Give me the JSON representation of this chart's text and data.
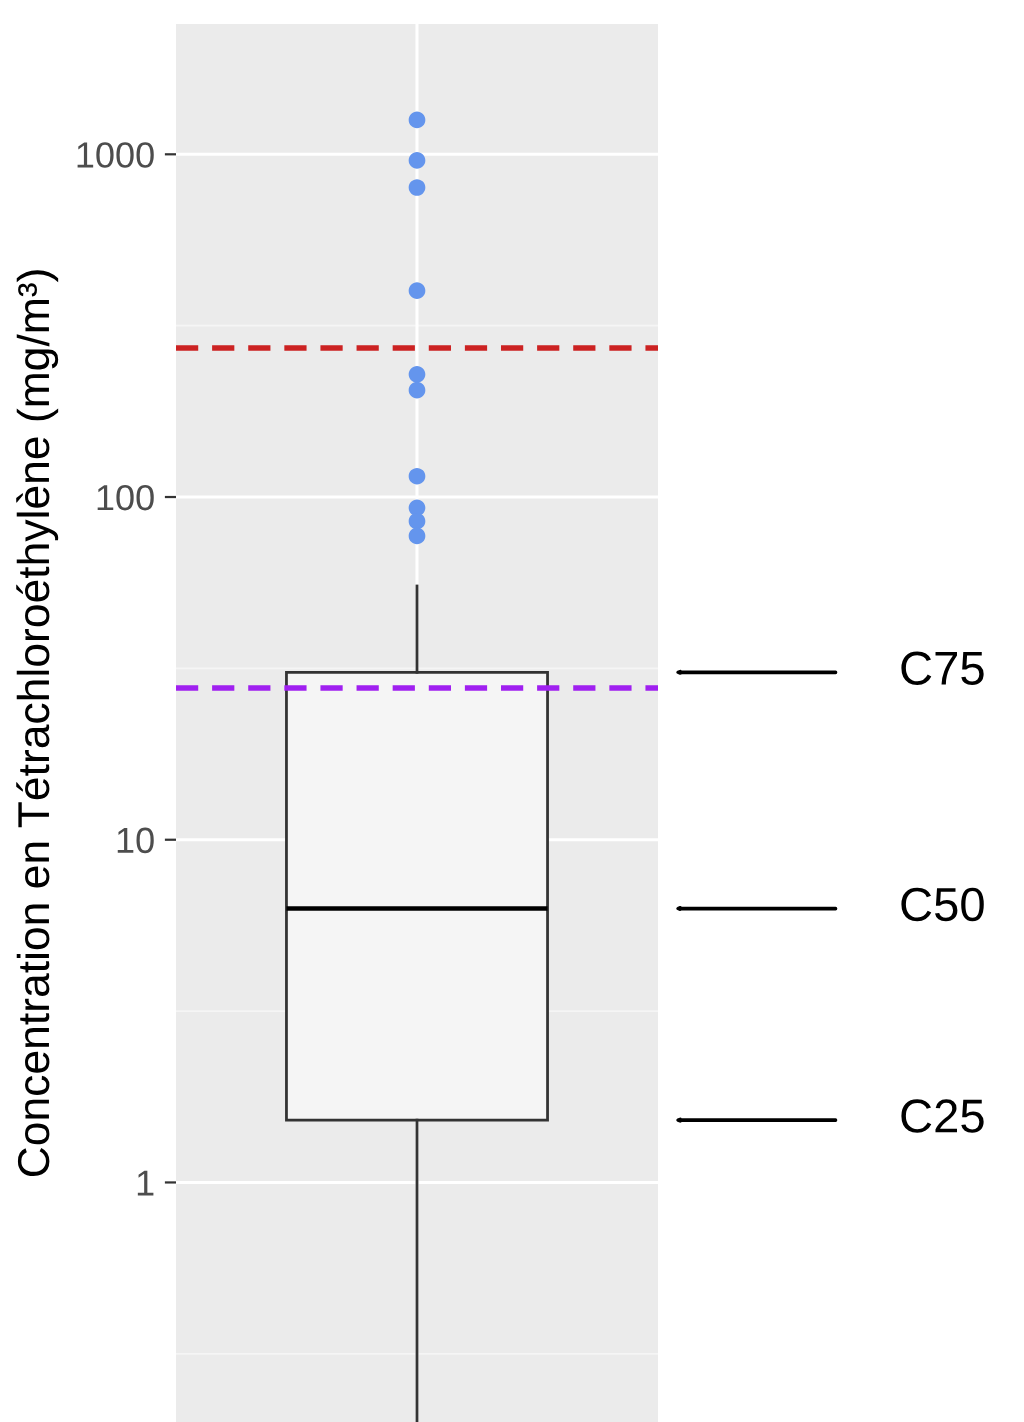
{
  "chart_data": {
    "type": "box",
    "ylabel": "Concentration en Tétrachloroéthylène (mg/m³)",
    "categories": [
      null
    ],
    "log": "y",
    "ylim": [
      0.2,
      2400
    ],
    "yticks": [
      1,
      10,
      100,
      1000
    ],
    "grid": true,
    "series": [
      {
        "color": "#f5f5f5",
        "boxes": [
          {
            "low": 0.2,
            "q1": 1.52,
            "median": 6.3,
            "q3": 30.8,
            "high": 55
          }
        ]
      },
      {
        "type": "scatter",
        "color": "#6495ed",
        "x": [
          null,
          null,
          null,
          null,
          null,
          null,
          null,
          null,
          null,
          null
        ],
        "values": [
          1260,
          960,
          800,
          400,
          228,
          205,
          115,
          93,
          85,
          77
        ]
      }
    ],
    "ref_lines": [
      {
        "axis": "y",
        "value": 272,
        "color": "#cc2222",
        "line_style": "dashed"
      },
      {
        "axis": "y",
        "value": 27.7,
        "color": "#a020f0",
        "line_style": "dashed"
      }
    ],
    "annotations": [
      "C75",
      "C50",
      "C25"
    ]
  }
}
